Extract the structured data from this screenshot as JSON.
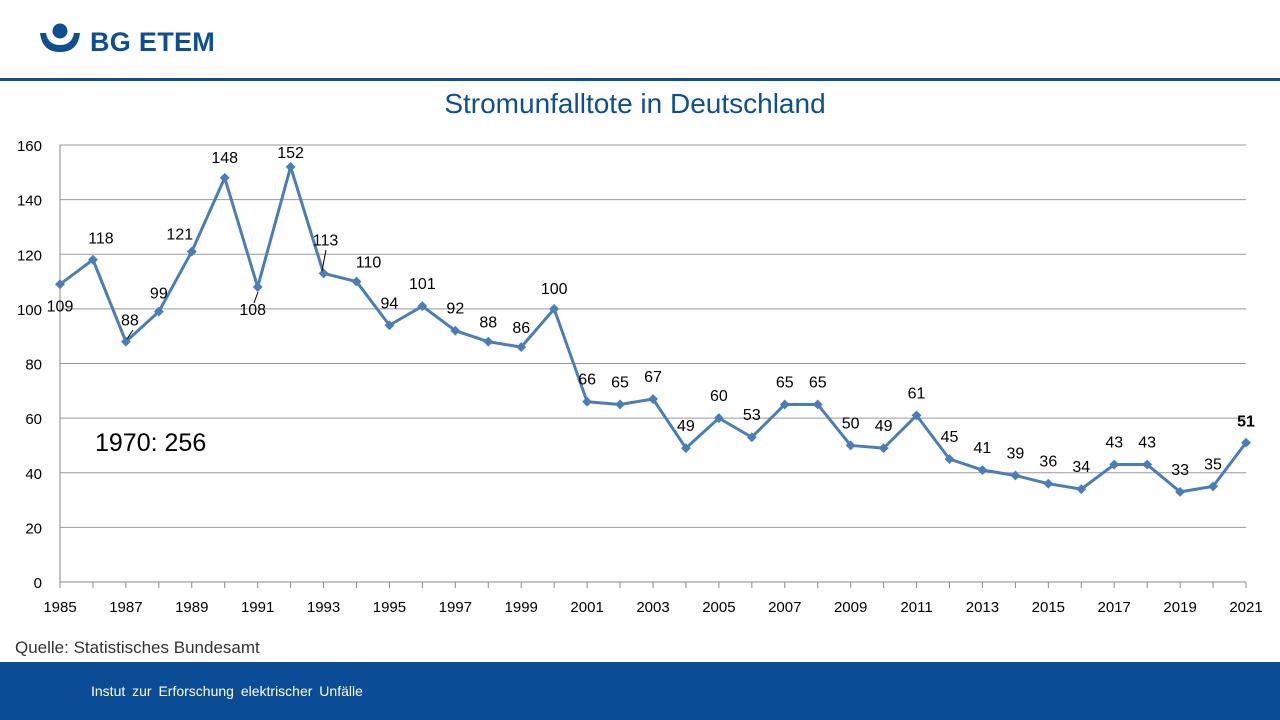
{
  "brand": {
    "name": "BG ETEM",
    "color": "#0d4f93"
  },
  "source": "Quelle: Statistisches Bundesamt",
  "footer": {
    "text": "Instut zur Erforschung elektrischer Unfälle"
  },
  "colors": {
    "line": "#4a7ebb",
    "footer": "#0a4d96",
    "title": "#0d4f93"
  },
  "chart_data": {
    "type": "line",
    "title": "Stromunfalltote in Deutschland",
    "xlabel": "",
    "ylabel": "",
    "ylim": [
      0,
      160
    ],
    "yticks": [
      0,
      20,
      40,
      60,
      80,
      100,
      120,
      140,
      160
    ],
    "xticks": [
      "1985",
      "1987",
      "1989",
      "1991",
      "1993",
      "1995",
      "1997",
      "1999",
      "2001",
      "2003",
      "2005",
      "2007",
      "2009",
      "2011",
      "2013",
      "2015",
      "2017",
      "2019",
      "2021"
    ],
    "grid": true,
    "legend": "none",
    "x": [
      1985,
      1986,
      1987,
      1988,
      1989,
      1990,
      1991,
      1992,
      1993,
      1994,
      1995,
      1996,
      1997,
      1998,
      1999,
      2000,
      2001,
      2002,
      2003,
      2004,
      2005,
      2006,
      2007,
      2008,
      2009,
      2010,
      2011,
      2012,
      2013,
      2014,
      2015,
      2016,
      2017,
      2018,
      2019,
      2020,
      2021
    ],
    "series": [
      {
        "values": [
          109,
          118,
          88,
          99,
          121,
          148,
          108,
          152,
          113,
          110,
          94,
          101,
          92,
          88,
          86,
          100,
          66,
          65,
          67,
          49,
          60,
          53,
          65,
          65,
          50,
          49,
          61,
          45,
          41,
          39,
          36,
          34,
          43,
          43,
          33,
          35,
          51
        ]
      }
    ],
    "annotation": "1970: 256"
  }
}
